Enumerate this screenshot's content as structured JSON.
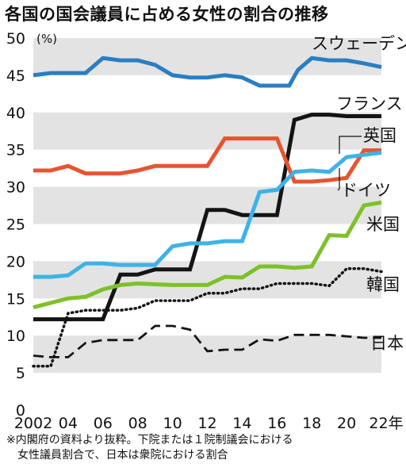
{
  "title": "各国の国会議員に占める女性の割合の推移",
  "footnote": {
    "line1": "※内閣府の資料より抜粋。下院または１院制議会における",
    "line2": "女性議員割合で、日本は衆院における割合"
  },
  "chart_data": {
    "type": "line",
    "title": "各国の国会議員に占める女性の割合の推移",
    "xlabel": "",
    "ylabel": "",
    "y_unit_label": "(%)",
    "ylim": [
      0,
      50
    ],
    "xlim": [
      2002,
      2022
    ],
    "y_ticks": [
      0,
      5,
      10,
      15,
      20,
      25,
      30,
      35,
      40,
      45,
      50
    ],
    "x_ticks": [
      {
        "x": 2002,
        "label": "2002"
      },
      {
        "x": 2004,
        "label": "04"
      },
      {
        "x": 2006,
        "label": "06"
      },
      {
        "x": 2008,
        "label": "08"
      },
      {
        "x": 2010,
        "label": "10"
      },
      {
        "x": 2012,
        "label": "12"
      },
      {
        "x": 2014,
        "label": "14"
      },
      {
        "x": 2016,
        "label": "16"
      },
      {
        "x": 2018,
        "label": "18"
      },
      {
        "x": 2020,
        "label": "20"
      },
      {
        "x": 2022,
        "label": "22年"
      }
    ],
    "grid": "alternating horizontal bands",
    "legend": "labels placed at right end of each line",
    "series": [
      {
        "name": "スウェーデン",
        "color": "#2a7ec2",
        "style": "solid",
        "points": [
          [
            2002,
            45.0
          ],
          [
            2003,
            45.3
          ],
          [
            2004,
            45.3
          ],
          [
            2005,
            45.3
          ],
          [
            2006,
            47.3
          ],
          [
            2007,
            47.0
          ],
          [
            2008,
            47.0
          ],
          [
            2009,
            46.4
          ],
          [
            2010,
            45.0
          ],
          [
            2011,
            44.7
          ],
          [
            2012,
            44.7
          ],
          [
            2013,
            45.0
          ],
          [
            2014,
            44.7
          ],
          [
            2015,
            43.6
          ],
          [
            2016,
            43.6
          ],
          [
            2016.7,
            43.6
          ],
          [
            2017.2,
            45.7
          ],
          [
            2018,
            47.3
          ],
          [
            2019,
            47.0
          ],
          [
            2020,
            47.0
          ],
          [
            2021,
            46.6
          ],
          [
            2022,
            46.1
          ]
        ]
      },
      {
        "name": "フランス",
        "color": "#141414",
        "style": "solid",
        "points": [
          [
            2002,
            12.2
          ],
          [
            2003,
            12.2
          ],
          [
            2004,
            12.2
          ],
          [
            2005,
            12.2
          ],
          [
            2006,
            12.2
          ],
          [
            2007,
            18.2
          ],
          [
            2008,
            18.2
          ],
          [
            2009,
            18.9
          ],
          [
            2010,
            18.9
          ],
          [
            2011,
            18.9
          ],
          [
            2012,
            26.9
          ],
          [
            2013,
            26.9
          ],
          [
            2014,
            26.2
          ],
          [
            2015,
            26.2
          ],
          [
            2016,
            26.2
          ],
          [
            2017,
            39.0
          ],
          [
            2018,
            39.7
          ],
          [
            2019,
            39.7
          ],
          [
            2020,
            39.5
          ],
          [
            2021,
            39.5
          ],
          [
            2022,
            39.5
          ]
        ]
      },
      {
        "name": "英国",
        "color": "#e65430",
        "style": "solid",
        "points": [
          [
            2002,
            32.2
          ],
          [
            2003,
            32.2
          ],
          [
            2004,
            32.8
          ],
          [
            2005,
            31.8
          ],
          [
            2006,
            31.8
          ],
          [
            2007,
            31.8
          ],
          [
            2008,
            32.2
          ],
          [
            2009,
            32.8
          ],
          [
            2010,
            32.8
          ],
          [
            2011,
            32.8
          ],
          [
            2012,
            32.8
          ],
          [
            2013,
            36.5
          ],
          [
            2014,
            36.5
          ],
          [
            2015,
            36.5
          ],
          [
            2016,
            36.5
          ],
          [
            2017,
            30.7
          ],
          [
            2018,
            30.7
          ],
          [
            2019,
            30.9
          ],
          [
            2020,
            31.2
          ],
          [
            2021,
            34.9
          ],
          [
            2022,
            34.9
          ]
        ]
      },
      {
        "name": "ドイツ",
        "color": "#3db3e8",
        "style": "solid",
        "points": [
          [
            2002,
            17.9
          ],
          [
            2003,
            17.9
          ],
          [
            2004,
            18.1
          ],
          [
            2005,
            19.7
          ],
          [
            2006,
            19.7
          ],
          [
            2007,
            19.5
          ],
          [
            2008,
            19.5
          ],
          [
            2009,
            19.5
          ],
          [
            2010,
            22.0
          ],
          [
            2011,
            22.4
          ],
          [
            2012,
            22.4
          ],
          [
            2013,
            22.7
          ],
          [
            2014,
            22.7
          ],
          [
            2015,
            29.3
          ],
          [
            2016,
            29.6
          ],
          [
            2017,
            32.0
          ],
          [
            2018,
            32.2
          ],
          [
            2019,
            32.0
          ],
          [
            2020,
            34.0
          ],
          [
            2021,
            34.3
          ],
          [
            2022,
            34.6
          ]
        ]
      },
      {
        "name": "米国",
        "color": "#7dc128",
        "style": "solid",
        "points": [
          [
            2002,
            13.8
          ],
          [
            2003,
            14.4
          ],
          [
            2004,
            15.0
          ],
          [
            2005,
            15.2
          ],
          [
            2006,
            16.2
          ],
          [
            2007,
            16.8
          ],
          [
            2008,
            17.0
          ],
          [
            2009,
            16.9
          ],
          [
            2010,
            16.8
          ],
          [
            2011,
            16.8
          ],
          [
            2012,
            16.8
          ],
          [
            2013,
            17.9
          ],
          [
            2014,
            17.8
          ],
          [
            2015,
            19.3
          ],
          [
            2016,
            19.3
          ],
          [
            2017,
            19.1
          ],
          [
            2018,
            19.3
          ],
          [
            2019,
            23.5
          ],
          [
            2020,
            23.4
          ],
          [
            2021,
            27.5
          ],
          [
            2022,
            27.9
          ]
        ]
      },
      {
        "name": "韓国",
        "color": "#141414",
        "style": "dotted",
        "points": [
          [
            2002,
            5.9
          ],
          [
            2003,
            5.9
          ],
          [
            2004,
            13.0
          ],
          [
            2005,
            13.4
          ],
          [
            2006,
            13.4
          ],
          [
            2007,
            13.4
          ],
          [
            2008,
            13.7
          ],
          [
            2009,
            14.7
          ],
          [
            2010,
            14.7
          ],
          [
            2011,
            14.7
          ],
          [
            2012,
            15.7
          ],
          [
            2013,
            15.7
          ],
          [
            2014,
            16.3
          ],
          [
            2015,
            16.3
          ],
          [
            2016,
            17.0
          ],
          [
            2017,
            17.0
          ],
          [
            2018,
            17.0
          ],
          [
            2019,
            16.7
          ],
          [
            2020,
            19.0
          ],
          [
            2021,
            19.0
          ],
          [
            2022,
            18.6
          ]
        ]
      },
      {
        "name": "日本",
        "color": "#141414",
        "style": "dashed",
        "points": [
          [
            2002,
            7.3
          ],
          [
            2003,
            7.1
          ],
          [
            2004,
            7.1
          ],
          [
            2005,
            9.0
          ],
          [
            2006,
            9.4
          ],
          [
            2007,
            9.4
          ],
          [
            2008,
            9.4
          ],
          [
            2009,
            11.3
          ],
          [
            2010,
            11.3
          ],
          [
            2011,
            10.8
          ],
          [
            2012,
            7.9
          ],
          [
            2013,
            8.1
          ],
          [
            2014,
            8.1
          ],
          [
            2015,
            9.5
          ],
          [
            2016,
            9.3
          ],
          [
            2017,
            10.1
          ],
          [
            2018,
            10.1
          ],
          [
            2019,
            10.1
          ],
          [
            2020,
            9.9
          ],
          [
            2021,
            9.7
          ],
          [
            2022,
            9.7
          ]
        ]
      }
    ]
  }
}
